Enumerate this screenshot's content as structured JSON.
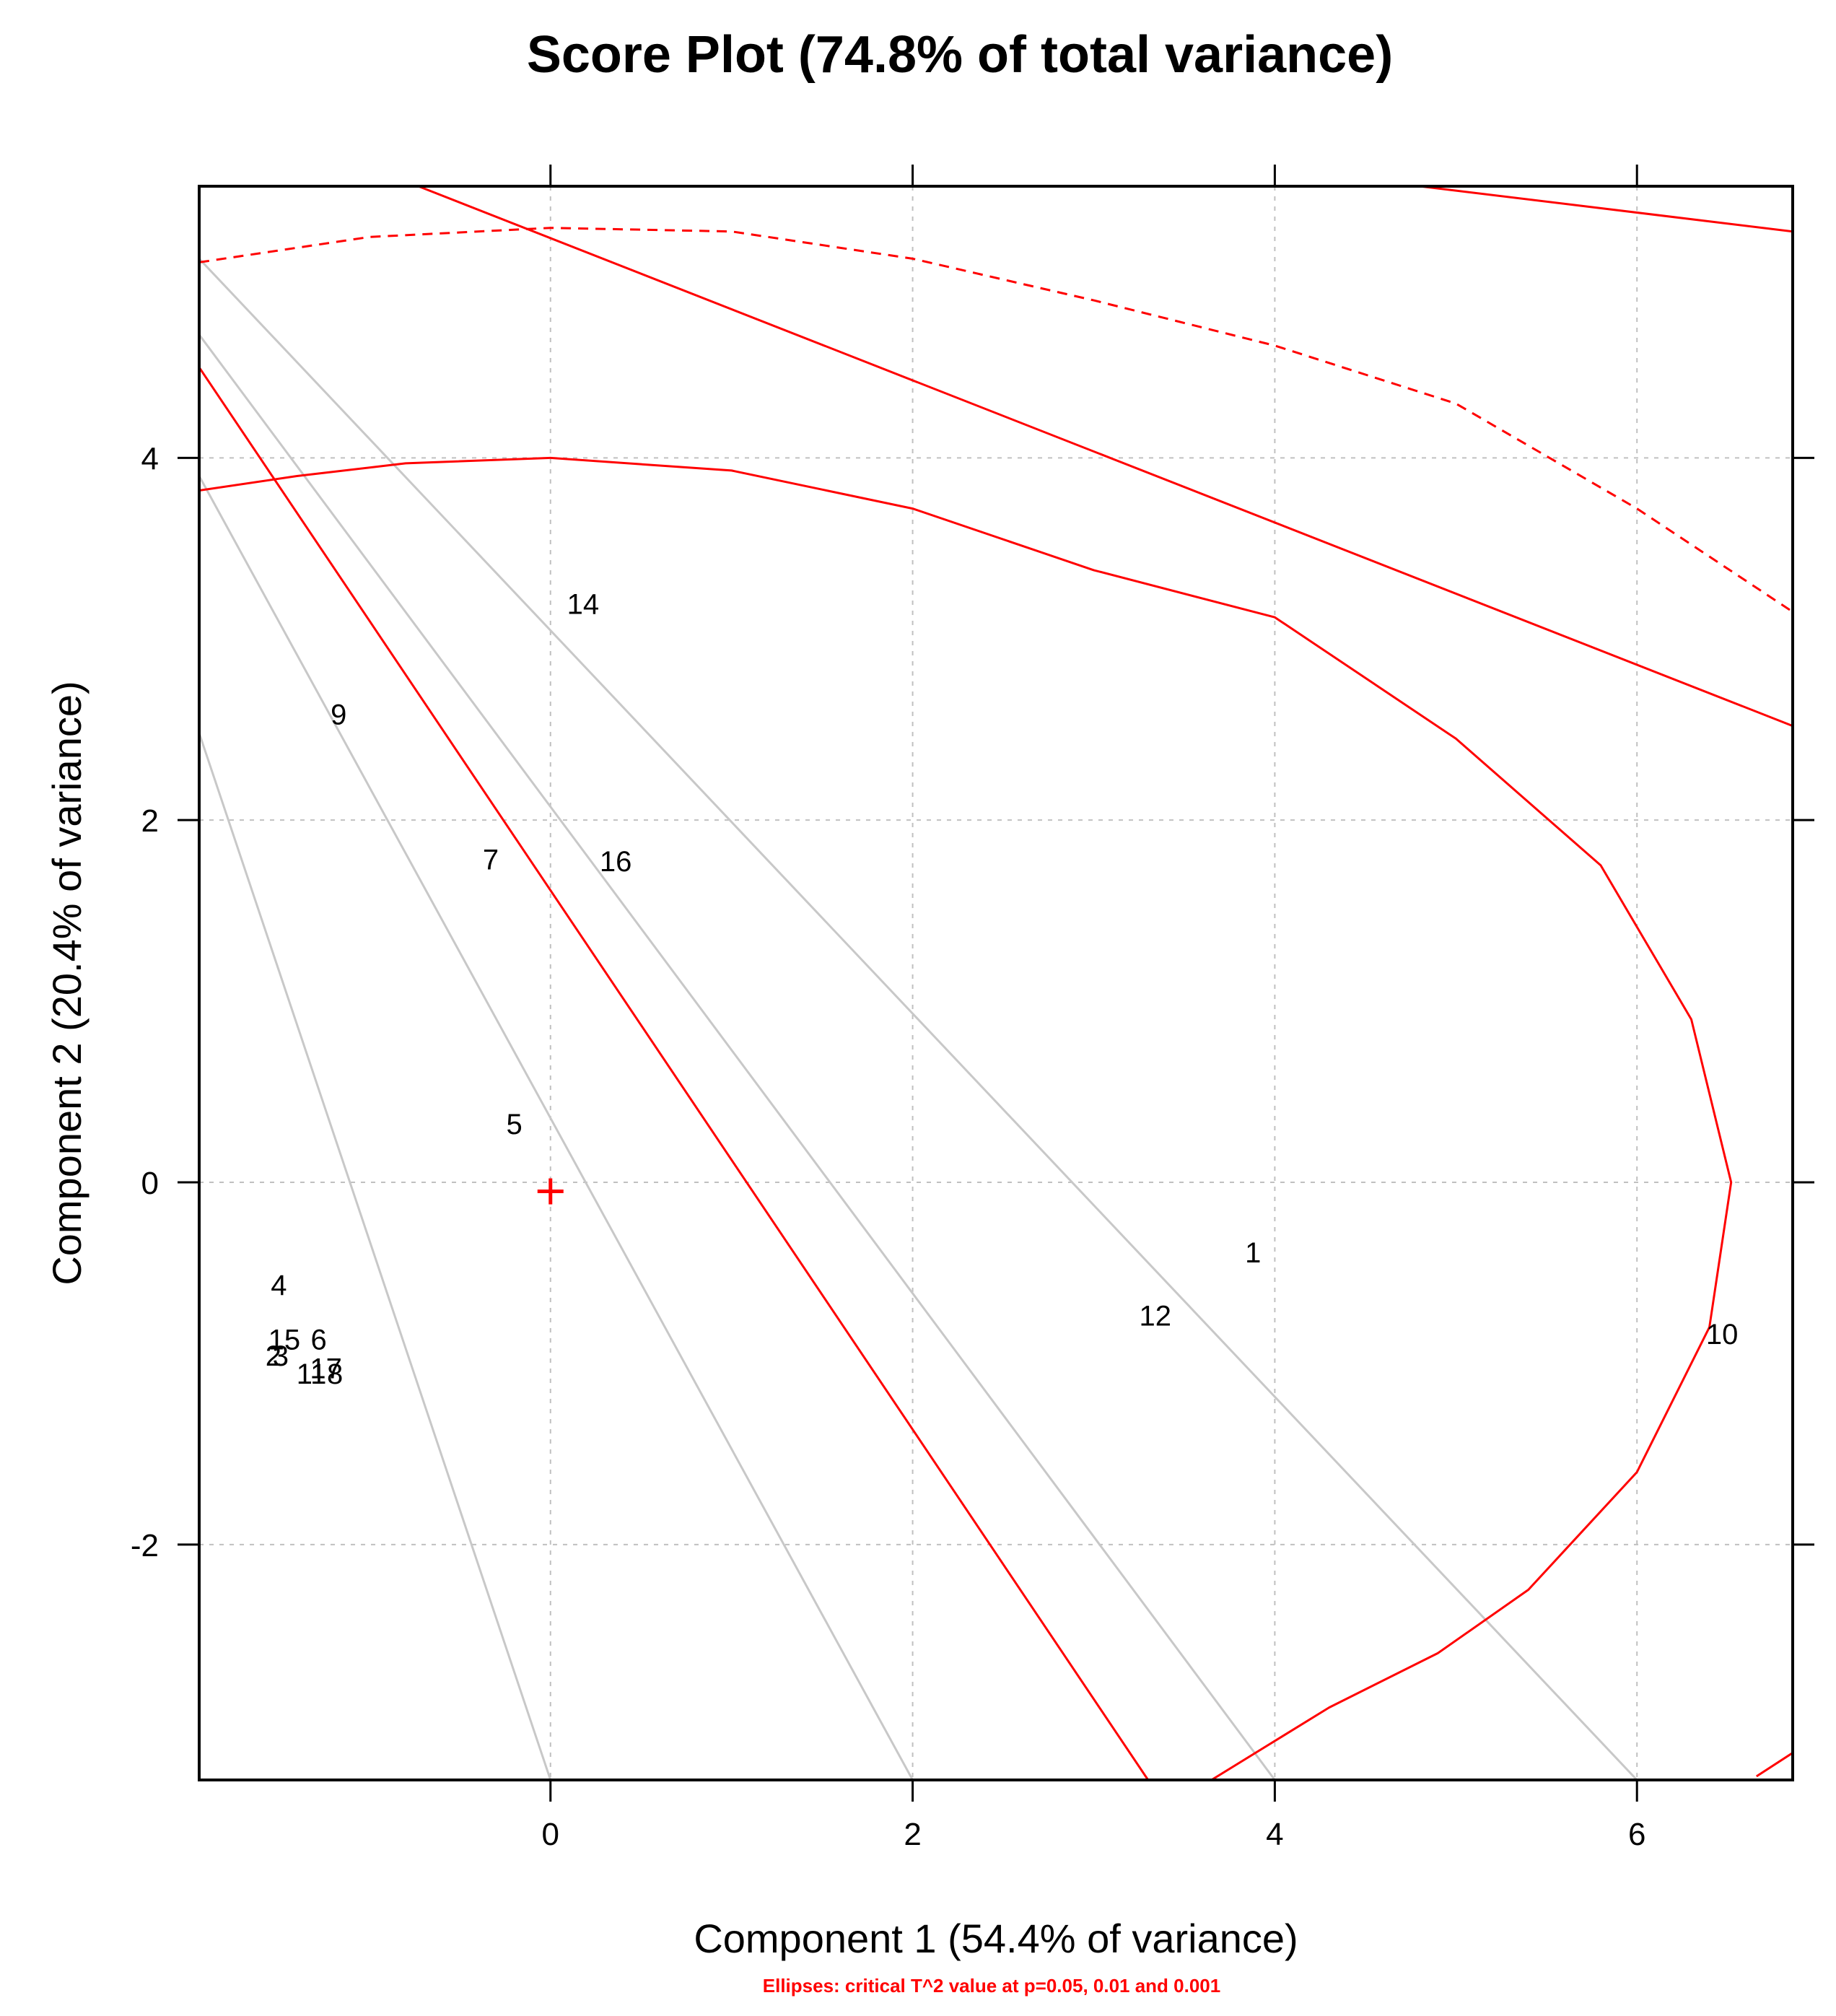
{
  "chart_data": {
    "type": "scatter",
    "title": "Score Plot (74.8% of total variance)",
    "xlabel": "Component 1 (54.4% of variance)",
    "ylabel": "Component 2 (20.4% of variance)",
    "caption": "Ellipses: critical T^2 value at p=0.05, 0.01 and 0.001",
    "xlim": [
      -1.94,
      6.86
    ],
    "ylim": [
      -3.3,
      5.5
    ],
    "xticks": [
      0,
      2,
      4,
      6
    ],
    "yticks": [
      -2,
      0,
      2,
      4
    ],
    "xtick_labels": [
      "0",
      "2",
      "4",
      "6"
    ],
    "ytick_labels": [
      "-2",
      "0",
      "2",
      "4"
    ],
    "grid": true,
    "colors": {
      "ellipse": "#ff0000",
      "guide_line": "#c8c8c8",
      "grid": "#c0c0c0",
      "frame": "#000000",
      "center": "#ff0000"
    },
    "center_marker": {
      "x": 0,
      "y": -0.05
    },
    "points": [
      {
        "label": "14",
        "x": 0.18,
        "y": 3.18
      },
      {
        "label": "9",
        "x": -1.17,
        "y": 2.57
      },
      {
        "label": "7",
        "x": -0.33,
        "y": 1.77
      },
      {
        "label": "16",
        "x": 0.36,
        "y": 1.76
      },
      {
        "label": "5",
        "x": -0.2,
        "y": 0.31
      },
      {
        "label": "1",
        "x": 3.88,
        "y": -0.4
      },
      {
        "label": "12",
        "x": 3.34,
        "y": -0.75
      },
      {
        "label": "10",
        "x": 6.47,
        "y": -0.85
      },
      {
        "label": "4",
        "x": -1.5,
        "y": -0.58
      },
      {
        "label": "15",
        "x": -1.47,
        "y": -0.88
      },
      {
        "label": "6",
        "x": -1.28,
        "y": -0.88
      },
      {
        "label": "2",
        "x": -1.53,
        "y": -0.97
      },
      {
        "label": "3",
        "x": -1.49,
        "y": -0.97
      },
      {
        "label": "11",
        "x": -1.32,
        "y": -1.07
      },
      {
        "label": "17",
        "x": -1.24,
        "y": -1.04
      },
      {
        "label": "8",
        "x": -1.19,
        "y": -1.07
      }
    ],
    "ellipses": [
      {
        "level": "p=0.05",
        "style": "solid",
        "path": [
          [
            -1.94,
            3.82
          ],
          [
            -1.4,
            3.9
          ],
          [
            -0.8,
            3.97
          ],
          [
            0,
            4.0
          ],
          [
            1,
            3.93
          ],
          [
            2,
            3.72
          ],
          [
            3,
            3.38
          ],
          [
            4,
            3.12
          ],
          [
            5,
            2.45
          ],
          [
            5.8,
            1.75
          ],
          [
            6.3,
            0.9
          ],
          [
            6.52,
            0.0
          ],
          [
            6.4,
            -0.8
          ],
          [
            6,
            -1.6
          ],
          [
            5.4,
            -2.25
          ],
          [
            4.9,
            -2.6
          ],
          [
            4.3,
            -2.9
          ],
          [
            3.65,
            -3.3
          ]
        ]
      },
      {
        "level": "p=0.01",
        "style": "dashed",
        "path": [
          [
            -1.94,
            5.08
          ],
          [
            -1,
            5.22
          ],
          [
            0,
            5.27
          ],
          [
            1,
            5.25
          ],
          [
            2,
            5.1
          ],
          [
            3,
            4.87
          ],
          [
            4,
            4.62
          ],
          [
            5,
            4.3
          ],
          [
            6,
            3.72
          ],
          [
            6.86,
            3.15
          ]
        ]
      },
      {
        "level": "p=0.001",
        "style": "solid",
        "path": [
          [
            6.86,
            -3.15
          ],
          [
            6.66,
            -3.28
          ]
        ]
      }
    ],
    "red_lines": [
      [
        [
          -1.94,
          4.5
        ],
        [
          3.3,
          -3.3
        ]
      ],
      [
        [
          -0.73,
          5.5
        ],
        [
          6.86,
          2.52
        ]
      ],
      [
        [
          4.8,
          5.5
        ],
        [
          6.86,
          5.25
        ]
      ]
    ],
    "gray_lines": [
      [
        [
          -1.94,
          2.48
        ],
        [
          0,
          -3.3
        ]
      ],
      [
        [
          -1.94,
          3.9
        ],
        [
          2,
          -3.3
        ]
      ],
      [
        [
          -1.94,
          4.68
        ],
        [
          4,
          -3.3
        ]
      ],
      [
        [
          -1.94,
          5.1
        ],
        [
          6,
          -3.3
        ]
      ]
    ]
  }
}
